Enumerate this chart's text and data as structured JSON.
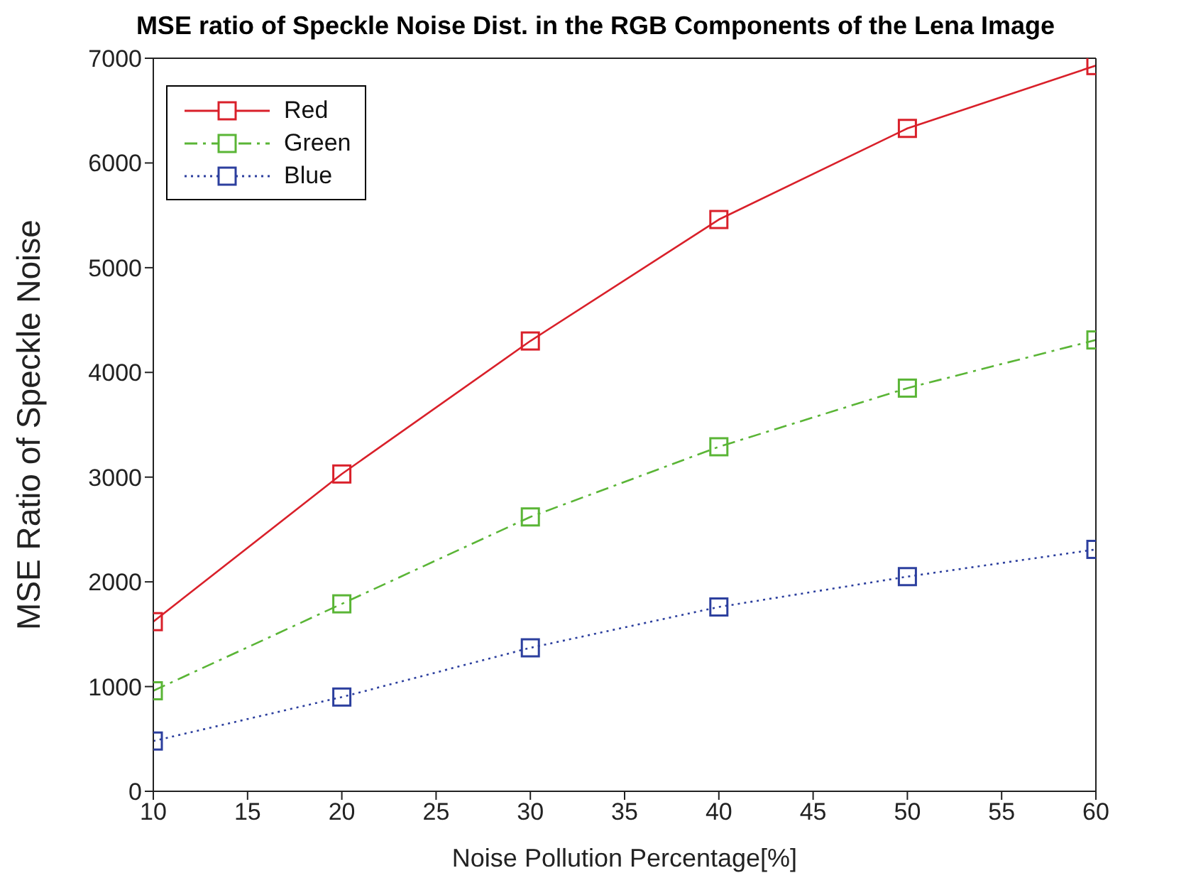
{
  "chart_data": {
    "type": "line",
    "title": "MSE ratio of Speckle Noise Dist. in the RGB Components of the Lena Image",
    "xlabel": "Noise Pollution Percentage[%]",
    "ylabel": "MSE Ratio of  Speckle Noise",
    "x": [
      10,
      20,
      30,
      40,
      50,
      60
    ],
    "series": [
      {
        "name": "Red",
        "color": "#d9202a",
        "line_style": "solid",
        "values": [
          1620,
          3030,
          4300,
          5460,
          6330,
          6930
        ]
      },
      {
        "name": "Green",
        "color": "#5ab536",
        "line_style": "dashed",
        "values": [
          960,
          1790,
          2620,
          3290,
          3850,
          4310
        ]
      },
      {
        "name": "Blue",
        "color": "#2c3f9e",
        "line_style": "dotted",
        "values": [
          480,
          900,
          1370,
          1760,
          2050,
          2310
        ]
      }
    ],
    "xlim": [
      10,
      60
    ],
    "xticks": [
      10,
      15,
      20,
      25,
      30,
      35,
      40,
      45,
      50,
      55,
      60
    ],
    "ylim": [
      0,
      7000
    ],
    "yticks": [
      0,
      1000,
      2000,
      3000,
      4000,
      5000,
      6000,
      7000
    ],
    "grid": false,
    "legend": "top left",
    "marker": "square"
  }
}
